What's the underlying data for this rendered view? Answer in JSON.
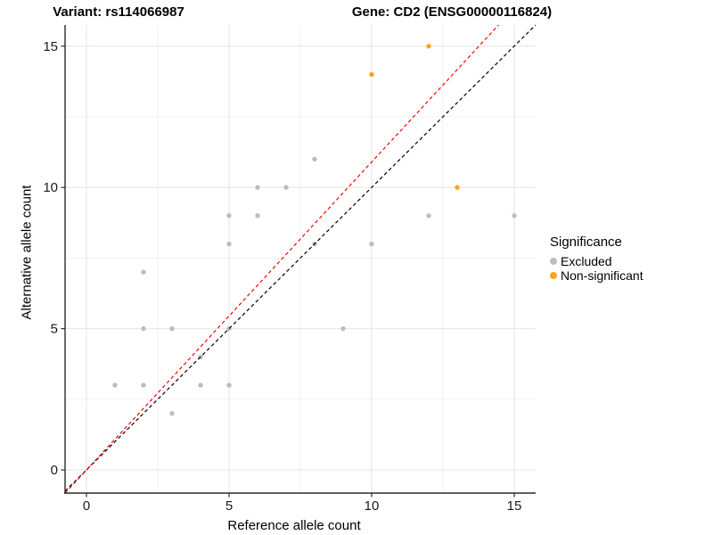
{
  "chart_data": {
    "type": "scatter",
    "title_left": "Variant: rs114066987",
    "title_right": "Gene: CD2 (ENSG00000116824)",
    "xlabel": "Reference allele count",
    "ylabel": "Alternative allele count",
    "xlim": [
      -0.75,
      15.75
    ],
    "ylim": [
      -0.82,
      15.75
    ],
    "x_ticks": [
      0,
      5,
      10,
      15
    ],
    "y_ticks": [
      0,
      5,
      10,
      15
    ],
    "minor_gridlines": [
      2.5,
      7.5,
      12.5
    ],
    "grid": "on",
    "series": [
      {
        "name": "Excluded",
        "color": "#BDBDBD",
        "points": [
          [
            1,
            3
          ],
          [
            2,
            3
          ],
          [
            2,
            5
          ],
          [
            2,
            7
          ],
          [
            3,
            2
          ],
          [
            3,
            5
          ],
          [
            4,
            3
          ],
          [
            4,
            4
          ],
          [
            5,
            3
          ],
          [
            5,
            5
          ],
          [
            5,
            8
          ],
          [
            5,
            9
          ],
          [
            6,
            9
          ],
          [
            6,
            10
          ],
          [
            7,
            10
          ],
          [
            8,
            8
          ],
          [
            8,
            11
          ],
          [
            9,
            5
          ],
          [
            10,
            8
          ],
          [
            12,
            9
          ],
          [
            15,
            9
          ]
        ]
      },
      {
        "name": "Non-significant",
        "color": "#FCA320",
        "points": [
          [
            10,
            14
          ],
          [
            12,
            15
          ],
          [
            13,
            10
          ]
        ]
      }
    ],
    "lines": [
      {
        "name": "identity-line",
        "color": "#000000",
        "style": "dashed",
        "x1": -0.75,
        "y1": -0.75,
        "x2": 15.75,
        "y2": 15.75
      },
      {
        "name": "expected-ratio-line",
        "color": "#FF0000",
        "style": "dashed",
        "x1": -0.75,
        "y1": -0.82,
        "x2": 14.45,
        "y2": 15.75
      }
    ],
    "legend": {
      "title": "Significance",
      "position": "right",
      "entries": [
        {
          "label": "Excluded",
          "color": "#BDBDBD"
        },
        {
          "label": "Non-significant",
          "color": "#FCA320"
        }
      ]
    }
  }
}
